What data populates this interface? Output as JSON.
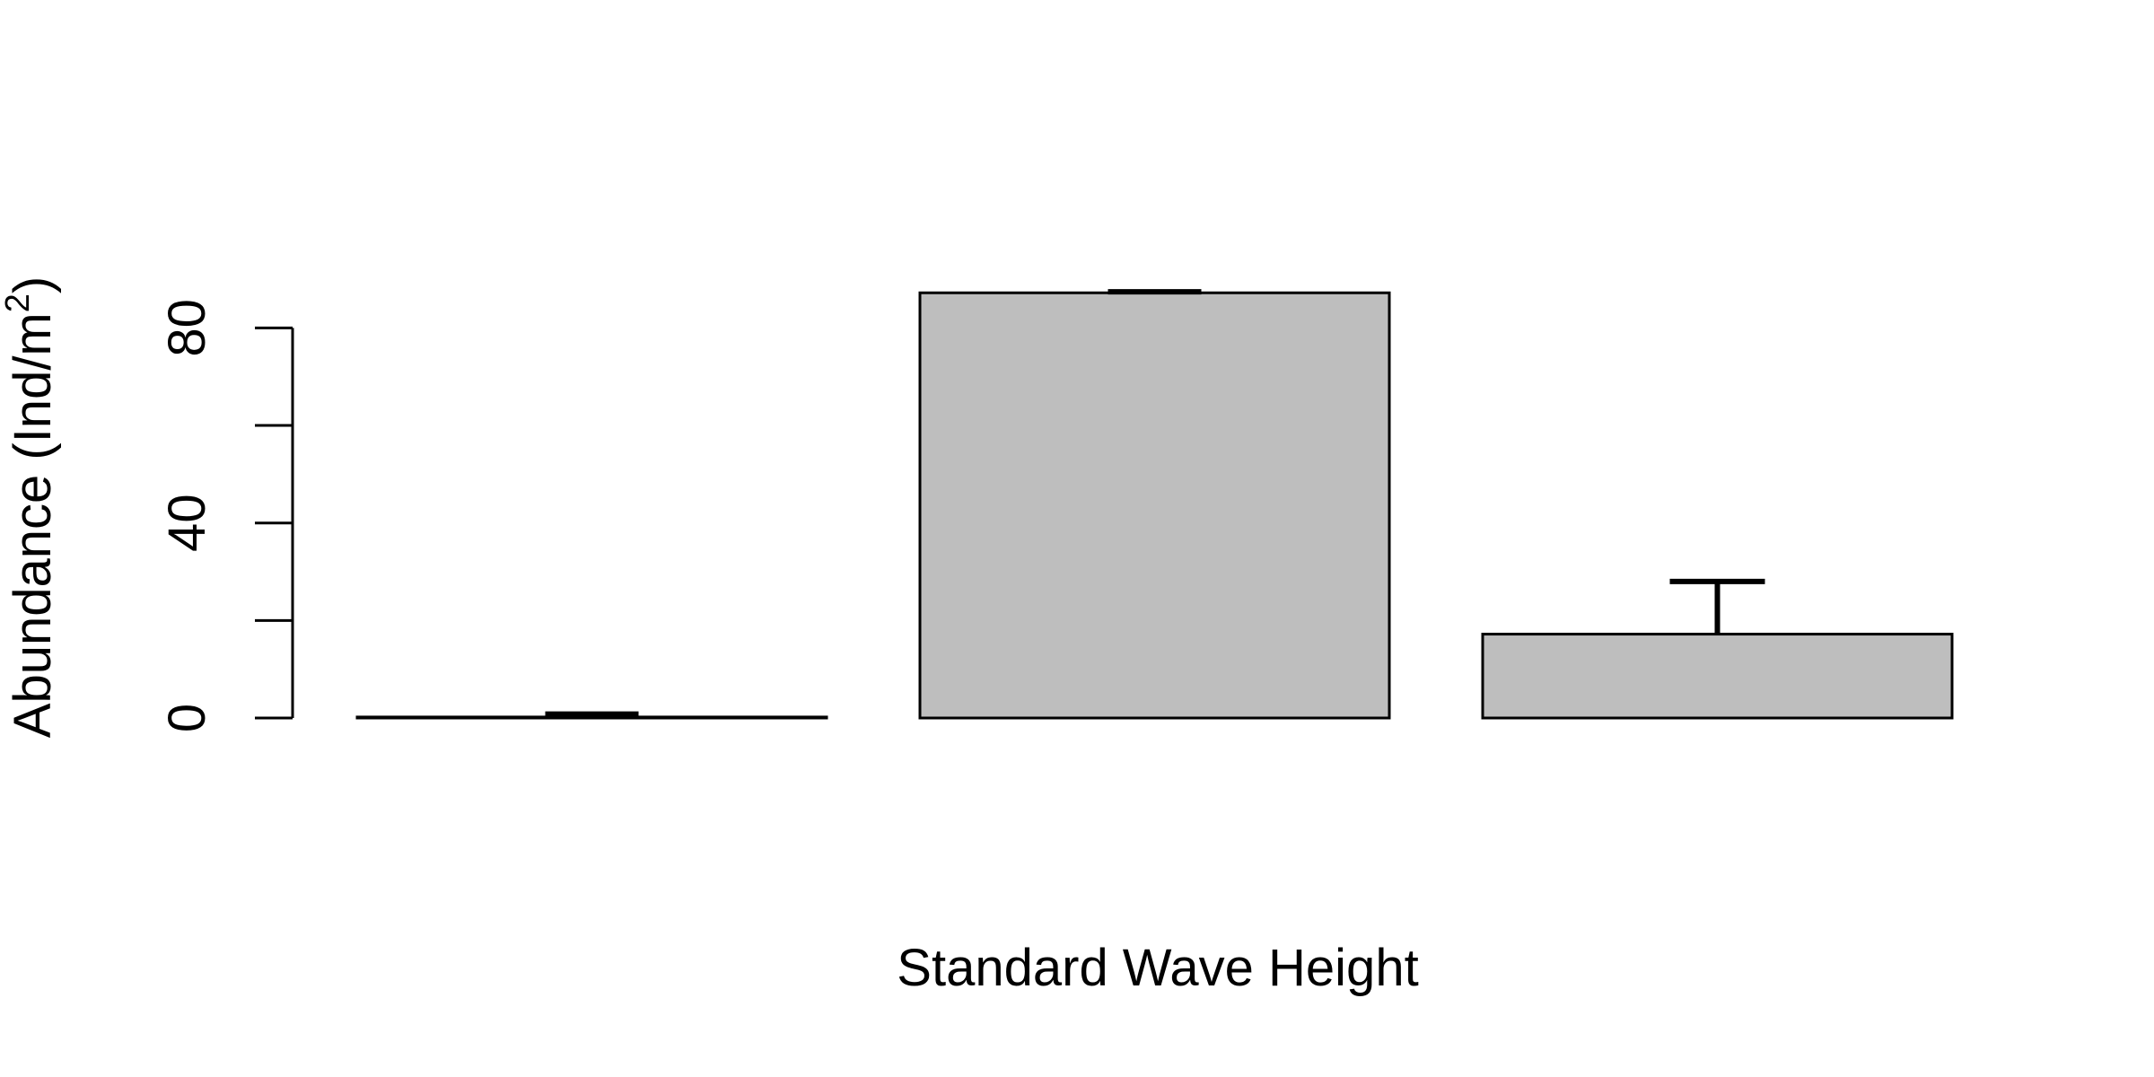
{
  "chart_data": {
    "type": "bar",
    "title": "",
    "xlabel": "Standard Wave Height",
    "ylabel": {
      "main": "Abundance (Ind/m",
      "superscript": "2",
      "close": ")"
    },
    "categories": [
      "",
      "",
      ""
    ],
    "series": [
      {
        "values": [
          0.2,
          87.2,
          17.2
        ],
        "error_upper": [
          0.8,
          87.4,
          28.0
        ]
      }
    ],
    "ylim": [
      0,
      87.8
    ],
    "yticks": [
      0,
      20,
      40,
      60,
      80
    ],
    "ytick_labels": [
      "0",
      "",
      "40",
      "",
      "80"
    ],
    "bar_color": "#bebebe",
    "edge_color": "#000000",
    "grid": false,
    "legend": "none"
  }
}
